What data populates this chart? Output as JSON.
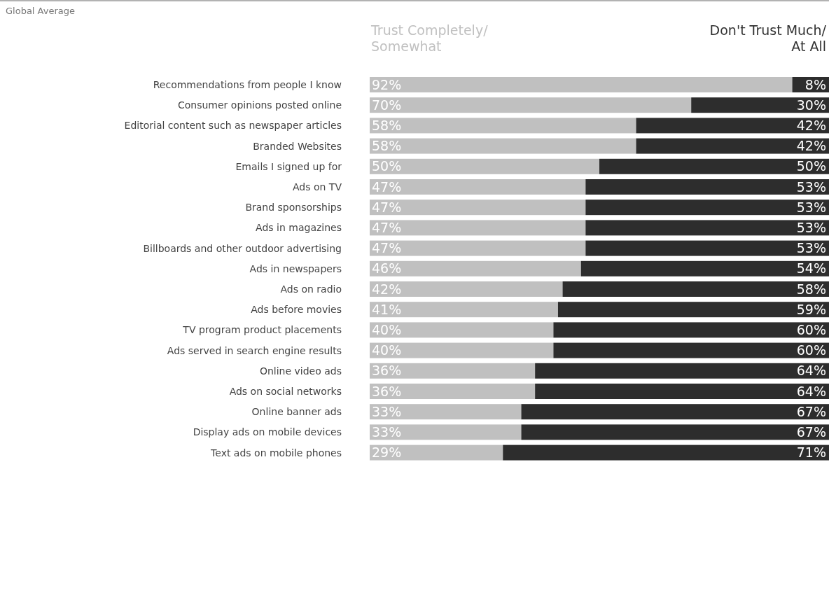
{
  "chart_data": {
    "type": "bar",
    "orientation": "horizontal",
    "stacked": true,
    "title": "Global Average",
    "categories": [
      "Recommendations from people I know",
      "Consumer opinions posted online",
      "Editorial content such as newspaper articles",
      "Branded Websites",
      "Emails I signed up for",
      "Ads on TV",
      "Brand sponsorships",
      "Ads in magazines",
      "Billboards and other outdoor advertising",
      "Ads in newspapers",
      "Ads on radio",
      "Ads before movies",
      "TV program product placements",
      "Ads served in search engine results",
      "Online video ads",
      "Ads on social networks",
      "Online banner ads",
      "Display ads on mobile devices",
      "Text ads on mobile phones"
    ],
    "series": [
      {
        "name": "Trust Completely/ Somewhat",
        "color": "#c0c0c0",
        "values": [
          92,
          70,
          58,
          58,
          50,
          47,
          47,
          47,
          47,
          46,
          42,
          41,
          40,
          40,
          36,
          36,
          33,
          33,
          29
        ],
        "value_labels": [
          "92%",
          "70%",
          "58%",
          "58%",
          "50%",
          "47%",
          "47%",
          "47%",
          "47%",
          "46%",
          "42%",
          "41%",
          "40%",
          "40%",
          "36%",
          "36%",
          "33%",
          "33%",
          "29%"
        ]
      },
      {
        "name": "Don't Trust Much/ At All",
        "color": "#2d2d2d",
        "values": [
          8,
          30,
          42,
          42,
          50,
          53,
          53,
          53,
          53,
          54,
          58,
          59,
          60,
          60,
          64,
          64,
          67,
          67,
          71
        ],
        "value_labels": [
          "8%",
          "30%",
          "42%",
          "42%",
          "50%",
          "53%",
          "53%",
          "53%",
          "53%",
          "54%",
          "58%",
          "59%",
          "60%",
          "60%",
          "64%",
          "64%",
          "67%",
          "67%",
          "71%"
        ]
      }
    ],
    "tick_labels": "y",
    "legend": "top"
  }
}
